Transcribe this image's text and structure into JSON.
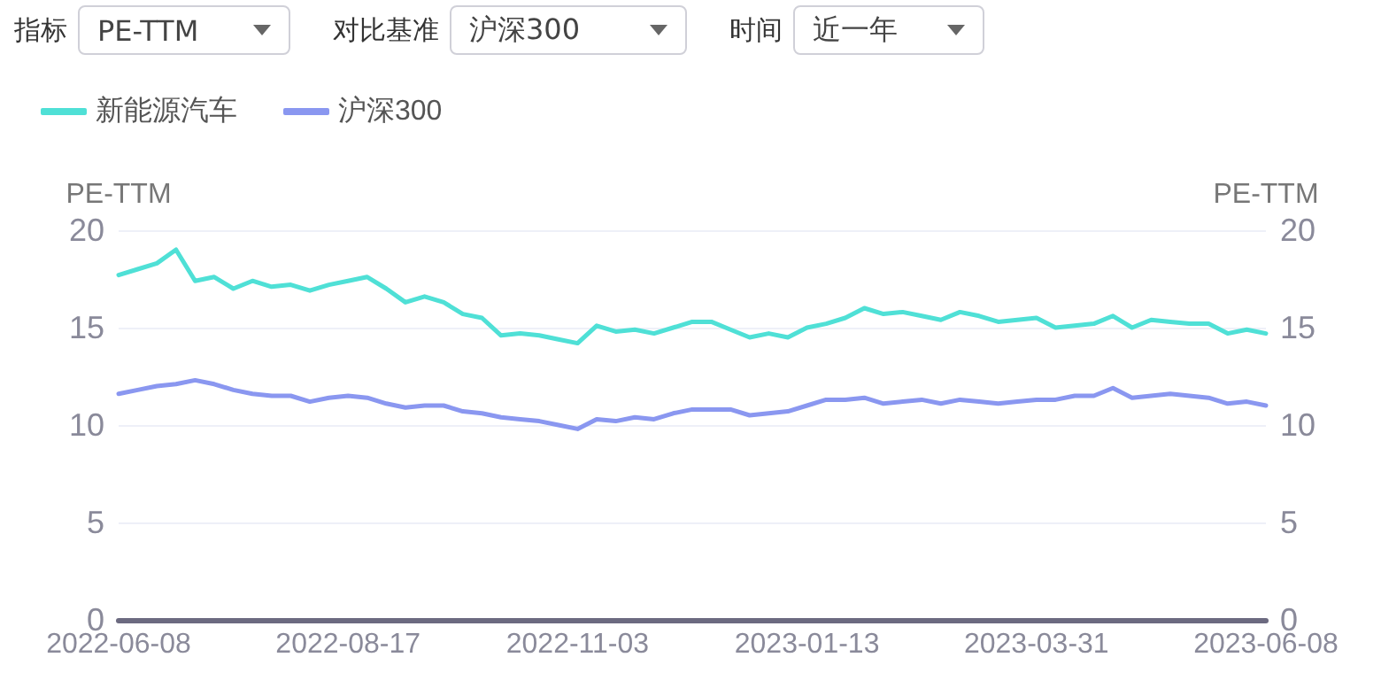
{
  "chart_data": {
    "type": "line",
    "ylabel": "PE-TTM",
    "y2label": "PE-TTM",
    "annotations": [
      "指标",
      "PE-TTM",
      "对比基准",
      "沪深300",
      "时间",
      "近一年"
    ],
    "categories": [
      "2022-06-08",
      null,
      null,
      null,
      null,
      null,
      null,
      null,
      null,
      null,
      null,
      null,
      "2022-08-17",
      null,
      null,
      null,
      null,
      null,
      null,
      null,
      null,
      null,
      null,
      null,
      "2022-11-03",
      null,
      null,
      null,
      null,
      null,
      null,
      null,
      null,
      null,
      null,
      null,
      "2023-01-13",
      null,
      null,
      null,
      null,
      null,
      null,
      null,
      null,
      null,
      null,
      null,
      "2023-03-31",
      null,
      null,
      null,
      null,
      null,
      null,
      null,
      null,
      null,
      null,
      null,
      "2023-06-08"
    ],
    "series": [
      {
        "name": "新能源汽车",
        "color": "#4fe0d6",
        "values": [
          17.7,
          18.0,
          18.3,
          19.0,
          17.4,
          17.6,
          17.0,
          17.4,
          17.1,
          17.2,
          16.9,
          17.2,
          17.4,
          17.6,
          17.0,
          16.3,
          16.6,
          16.3,
          15.7,
          15.5,
          14.6,
          14.7,
          14.6,
          14.4,
          14.2,
          15.1,
          14.8,
          14.9,
          14.7,
          15.0,
          15.3,
          15.3,
          14.9,
          14.5,
          14.7,
          14.5,
          15.0,
          15.2,
          15.5,
          16.0,
          15.7,
          15.8,
          15.6,
          15.4,
          15.8,
          15.6,
          15.3,
          15.4,
          15.5,
          15.0,
          15.1,
          15.2,
          15.6,
          15.0,
          15.4,
          15.3,
          15.2,
          15.2,
          14.7,
          14.9,
          14.7
        ]
      },
      {
        "name": "沪深300",
        "color": "#8a97f0",
        "values": [
          11.6,
          11.8,
          12.0,
          12.1,
          12.3,
          12.1,
          11.8,
          11.6,
          11.5,
          11.5,
          11.2,
          11.4,
          11.5,
          11.4,
          11.1,
          10.9,
          11.0,
          11.0,
          10.7,
          10.6,
          10.4,
          10.3,
          10.2,
          10.0,
          9.8,
          10.3,
          10.2,
          10.4,
          10.3,
          10.6,
          10.8,
          10.8,
          10.8,
          10.5,
          10.6,
          10.7,
          11.0,
          11.3,
          11.3,
          11.4,
          11.1,
          11.2,
          11.3,
          11.1,
          11.3,
          11.2,
          11.1,
          11.2,
          11.3,
          11.3,
          11.5,
          11.5,
          11.9,
          11.4,
          11.5,
          11.6,
          11.5,
          11.4,
          11.1,
          11.2,
          11.0
        ]
      }
    ],
    "ylim": [
      0,
      20
    ],
    "yticks": [
      0,
      5,
      10,
      15,
      20
    ],
    "y2lim": [
      0,
      20
    ],
    "y2ticks": [
      0,
      5,
      10,
      15,
      20
    ],
    "grid": "y",
    "legend": "top left",
    "marker": "none",
    "line_style": "solid"
  }
}
